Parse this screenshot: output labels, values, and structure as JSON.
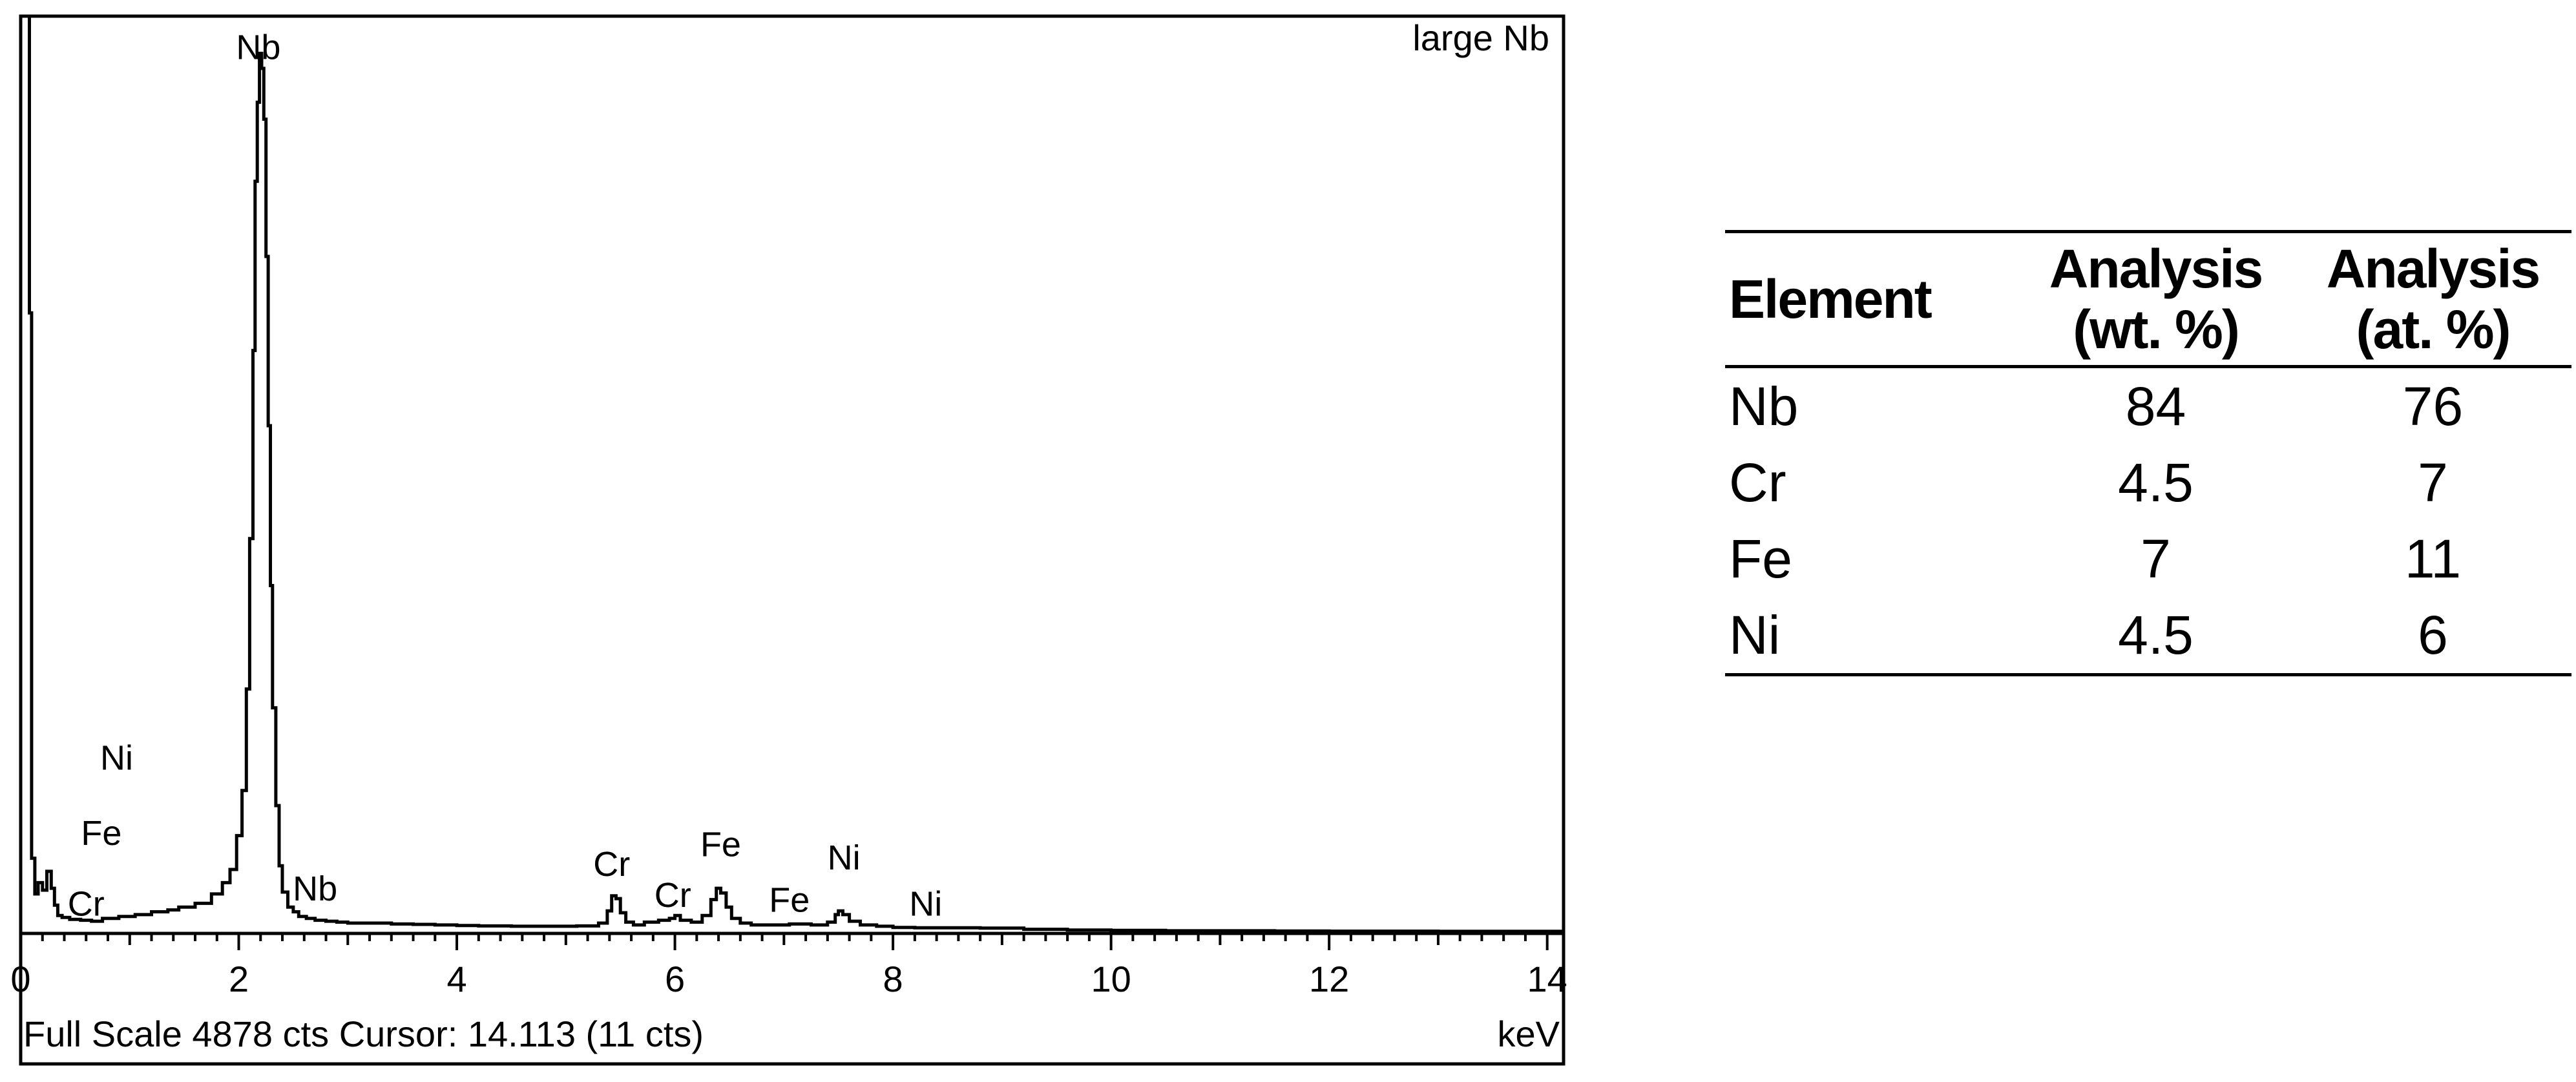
{
  "chart_data": {
    "type": "line",
    "title": "large Nb",
    "xlabel": "keV",
    "ylabel": "",
    "xlim": [
      0,
      14.15
    ],
    "ylim": [
      0,
      4878
    ],
    "x_ticks": [
      "0",
      "2",
      "4",
      "6",
      "8",
      "10",
      "12",
      "14"
    ],
    "x_tick_values": [
      0,
      2,
      4,
      6,
      8,
      10,
      12,
      14
    ],
    "status_text": "Full Scale 4878 cts Cursor: 14.113  (11 cts)",
    "series": [
      {
        "x": [
          0.0,
          0.02,
          0.05,
          0.08,
          0.1,
          0.13,
          0.16,
          0.2,
          0.24,
          0.28,
          0.31,
          0.34,
          0.38,
          0.45,
          0.55,
          0.65,
          0.75,
          0.9,
          1.05,
          1.2,
          1.35,
          1.45,
          1.6,
          1.75,
          1.85,
          1.92,
          1.98,
          2.03,
          2.07,
          2.1,
          2.13,
          2.15,
          2.17,
          2.19,
          2.21,
          2.23,
          2.25,
          2.27,
          2.29,
          2.31,
          2.34,
          2.37,
          2.4,
          2.45,
          2.5,
          2.55,
          2.62,
          2.7,
          2.8,
          2.9,
          3.0,
          3.2,
          3.4,
          3.6,
          3.8,
          4.0,
          4.2,
          4.5,
          4.8,
          5.1,
          5.3,
          5.38,
          5.42,
          5.46,
          5.5,
          5.55,
          5.62,
          5.72,
          5.85,
          5.95,
          6.0,
          6.05,
          6.15,
          6.25,
          6.33,
          6.38,
          6.42,
          6.47,
          6.52,
          6.6,
          6.7,
          6.9,
          7.05,
          7.25,
          7.4,
          7.47,
          7.5,
          7.54,
          7.6,
          7.7,
          7.85,
          8.0,
          8.2,
          8.5,
          8.8,
          9.2,
          9.6,
          10.0,
          10.5,
          11.0,
          11.5,
          12.0,
          12.5,
          13.0,
          13.5,
          14.0,
          14.15
        ],
        "values": [
          4878,
          4878,
          4878,
          3300,
          400,
          210,
          270,
          230,
          330,
          240,
          150,
          95,
          85,
          75,
          70,
          65,
          80,
          90,
          100,
          115,
          125,
          140,
          160,
          210,
          270,
          340,
          520,
          760,
          1300,
          2100,
          3100,
          4000,
          4420,
          4680,
          4600,
          4330,
          3600,
          2700,
          1850,
          1200,
          680,
          360,
          220,
          140,
          115,
          90,
          80,
          70,
          65,
          60,
          55,
          55,
          50,
          48,
          45,
          42,
          40,
          38,
          38,
          40,
          55,
          120,
          200,
          185,
          110,
          60,
          45,
          60,
          70,
          80,
          95,
          70,
          60,
          95,
          180,
          240,
          215,
          140,
          80,
          55,
          45,
          45,
          50,
          45,
          60,
          100,
          120,
          100,
          65,
          45,
          38,
          32,
          30,
          30,
          28,
          22,
          18,
          16,
          14,
          14,
          13,
          12,
          12,
          11,
          11,
          11,
          11
        ]
      }
    ],
    "peak_labels": [
      {
        "text": "Nb",
        "x": 2.18,
        "y": 4650
      },
      {
        "text": "Ni",
        "x": 0.88,
        "y": 870
      },
      {
        "text": "Fe",
        "x": 0.74,
        "y": 470
      },
      {
        "text": "Cr",
        "x": 0.6,
        "y": 95
      },
      {
        "text": "Nb",
        "x": 2.7,
        "y": 175
      },
      {
        "text": "Cr",
        "x": 5.42,
        "y": 305
      },
      {
        "text": "Cr",
        "x": 5.98,
        "y": 140
      },
      {
        "text": "Fe",
        "x": 6.42,
        "y": 410
      },
      {
        "text": "Fe",
        "x": 7.05,
        "y": 115
      },
      {
        "text": "Ni",
        "x": 7.55,
        "y": 340
      },
      {
        "text": "Ni",
        "x": 8.3,
        "y": 95
      }
    ]
  },
  "results_table": {
    "headers": {
      "element": "Element",
      "wt_line1": "Analysis",
      "wt_line2": "(wt. %)",
      "at_line1": "Analysis",
      "at_line2": "(at. %)"
    },
    "rows": [
      {
        "element": "Nb",
        "wt": "84",
        "at": "76"
      },
      {
        "element": "Cr",
        "wt": "4.5",
        "at": "7"
      },
      {
        "element": "Fe",
        "wt": "7",
        "at": "11"
      },
      {
        "element": "Ni",
        "wt": "4.5",
        "at": "6"
      }
    ]
  }
}
